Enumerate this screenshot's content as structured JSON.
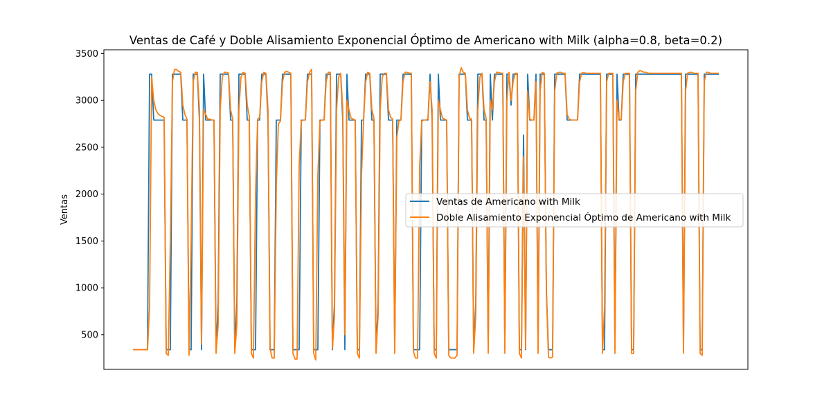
{
  "chart_data": {
    "type": "line",
    "title": "Ventas de Café y Doble Alisamiento Exponencial Óptimo de Americano with Milk (alpha=0.8, beta=0.2)",
    "xlabel": "",
    "ylabel": "Ventas",
    "ylim": [
      130,
      3540
    ],
    "yticks": [
      500,
      1000,
      1500,
      2000,
      2500,
      3000,
      3500
    ],
    "x_ticks_shown": false,
    "grid": false,
    "legend_position": "center-right",
    "series": [
      {
        "name": "Ventas de Americano with Milk",
        "color": "#1f77b4",
        "values": [
          340,
          340,
          340,
          340,
          340,
          340,
          340,
          340,
          3280,
          3280,
          2790,
          2790,
          2790,
          2790,
          2790,
          2790,
          340,
          340,
          340,
          3280,
          3280,
          3280,
          3280,
          3280,
          2790,
          2790,
          2790,
          340,
          340,
          3280,
          3280,
          3280,
          2790,
          340,
          3280,
          2790,
          2790,
          2790,
          2790,
          2790,
          340,
          840,
          3280,
          3280,
          3280,
          3280,
          3280,
          2790,
          2790,
          340,
          840,
          3280,
          3280,
          3280,
          3280,
          2790,
          2790,
          340,
          340,
          340,
          2790,
          2790,
          3280,
          3280,
          3280,
          2790,
          340,
          340,
          340,
          2790,
          2790,
          2790,
          3280,
          3280,
          3280,
          3280,
          3280,
          340,
          340,
          340,
          340,
          2790,
          2790,
          2790,
          3280,
          3280,
          3280,
          340,
          340,
          340,
          2790,
          2790,
          2790,
          3280,
          3280,
          3280,
          340,
          840,
          3280,
          3280,
          3280,
          2790,
          340,
          3280,
          2790,
          2790,
          2790,
          2790,
          340,
          340,
          2790,
          2790,
          3280,
          3280,
          3280,
          2790,
          2790,
          340,
          840,
          3280,
          3280,
          3280,
          3280,
          2790,
          2790,
          2790,
          340,
          2790,
          2790,
          2790,
          3280,
          3280,
          3280,
          3280,
          3280,
          340,
          340,
          340,
          340,
          2790,
          2790,
          2790,
          2790,
          3280,
          2790,
          340,
          340,
          3280,
          2790,
          2790,
          2790,
          2790,
          340,
          340,
          340,
          340,
          340,
          3280,
          3280,
          3280,
          3280,
          2790,
          2790,
          2790,
          340,
          840,
          3280,
          3280,
          3280,
          2790,
          2790,
          340,
          3280,
          2790,
          3280,
          3280,
          3280,
          3280,
          3280,
          340,
          3280,
          3280,
          2950,
          3280,
          3280,
          3280,
          340,
          340,
          2630,
          340,
          3280,
          2790,
          2790,
          2790,
          3280,
          340,
          3280,
          3280,
          3280,
          970,
          340,
          340,
          340,
          3280,
          3280,
          3280,
          3280,
          3280,
          3280,
          2790,
          2790,
          2790,
          2790,
          2790,
          2790,
          3280,
          3280,
          3280,
          3280,
          3280,
          3280,
          3280,
          3280,
          3280,
          3280,
          3280,
          340,
          340,
          3280,
          3280,
          3280,
          3280,
          340,
          3280,
          2790,
          2790,
          3280,
          3280,
          3280,
          3280,
          340,
          340,
          3280,
          3280,
          3280,
          3280,
          3280,
          3280,
          3280,
          3280,
          3280,
          3280,
          3280,
          3280,
          3280,
          3280,
          3280,
          3280,
          3280,
          3280,
          3280,
          3280,
          3280,
          3280,
          3280,
          340,
          3280,
          3280,
          3280,
          3280,
          3280,
          3280,
          3280,
          340,
          340,
          3280,
          3280,
          3280,
          3280,
          3280,
          3280,
          3280,
          3280
        ]
      },
      {
        "name": "Doble Alisamiento Exponencial Óptimo de Americano with Milk",
        "color": "#ff7f0e",
        "values": [
          340,
          340,
          340,
          340,
          340,
          340,
          340,
          340,
          800,
          3250,
          3000,
          2900,
          2860,
          2840,
          2830,
          2820,
          300,
          280,
          1500,
          3200,
          3330,
          3330,
          3310,
          3300,
          2950,
          2850,
          2800,
          280,
          1500,
          3200,
          3300,
          3300,
          2900,
          400,
          2900,
          2850,
          2800,
          2800,
          2790,
          2790,
          300,
          600,
          2900,
          3250,
          3300,
          3300,
          3290,
          2900,
          2800,
          300,
          600,
          2900,
          3250,
          3300,
          3290,
          2950,
          2830,
          300,
          250,
          2000,
          2800,
          2820,
          3200,
          3300,
          3290,
          2900,
          350,
          250,
          250,
          2100,
          2750,
          2780,
          3200,
          3300,
          3310,
          3300,
          3290,
          300,
          240,
          240,
          2300,
          2780,
          2790,
          2790,
          3200,
          3300,
          3330,
          300,
          230,
          2200,
          2780,
          2790,
          2790,
          3200,
          3300,
          3300,
          350,
          700,
          2900,
          3250,
          3290,
          2900,
          500,
          3000,
          2900,
          2810,
          2800,
          2790,
          300,
          250,
          2200,
          2780,
          3200,
          3300,
          3290,
          2900,
          2810,
          300,
          700,
          2900,
          3250,
          3290,
          3290,
          2900,
          2820,
          2800,
          300,
          2600,
          2780,
          2790,
          3200,
          3300,
          3300,
          3290,
          3290,
          320,
          250,
          250,
          2300,
          2780,
          2790,
          2790,
          2800,
          3200,
          2900,
          300,
          250,
          3000,
          2900,
          2810,
          2800,
          2790,
          280,
          250,
          250,
          250,
          280,
          3250,
          3350,
          3300,
          3290,
          2900,
          2810,
          2800,
          300,
          700,
          2900,
          3250,
          3290,
          2900,
          2810,
          300,
          3000,
          2900,
          3200,
          3300,
          3300,
          3290,
          3290,
          300,
          3000,
          3300,
          3000,
          3200,
          3290,
          3290,
          300,
          250,
          2400,
          350,
          3100,
          2800,
          2790,
          2790,
          3200,
          300,
          3100,
          3300,
          3290,
          950,
          260,
          250,
          260,
          3100,
          3290,
          3300,
          3300,
          3290,
          3290,
          2850,
          2800,
          2790,
          2790,
          2790,
          2790,
          3200,
          3290,
          3300,
          3290,
          3290,
          3290,
          3290,
          3290,
          3290,
          3290,
          3290,
          300,
          800,
          3200,
          3290,
          3290,
          3290,
          300,
          3000,
          2800,
          2790,
          3200,
          3290,
          3290,
          3290,
          300,
          300,
          3100,
          3300,
          3320,
          3310,
          3300,
          3300,
          3290,
          3290,
          3290,
          3290,
          3290,
          3290,
          3290,
          3290,
          3290,
          3290,
          3290,
          3290,
          3290,
          3290,
          3290,
          3290,
          3290,
          300,
          3100,
          3290,
          3300,
          3300,
          3290,
          3290,
          3290,
          300,
          280,
          3200,
          3300,
          3300,
          3290,
          3290,
          3290,
          3290,
          3290
        ]
      }
    ]
  }
}
